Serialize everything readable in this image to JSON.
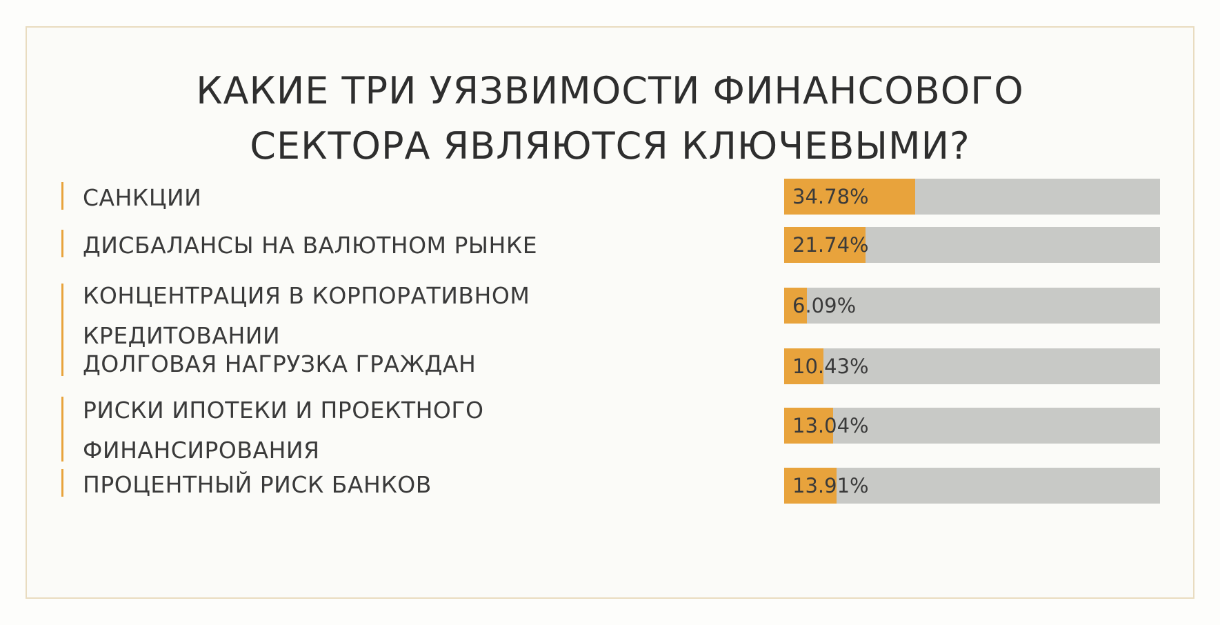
{
  "title_lines": [
    "КАКИЕ ТРИ УЯЗВИМОСТИ ФИНАНСОВОГО",
    "СЕКТОРА ЯВЛЯЮТСЯ КЛЮЧЕВЫМИ?"
  ],
  "colors": {
    "accent": "#e8a33c",
    "track": "#c8c9c6",
    "text": "#3a3a3a",
    "frame": "#e9dcc0"
  },
  "chart_data": {
    "type": "bar",
    "orientation": "horizontal",
    "title": "КАКИЕ ТРИ УЯЗВИМОСТИ ФИНАНСОВОГО СЕКТОРА ЯВЛЯЮТСЯ КЛЮЧЕВЫМИ?",
    "categories": [
      "САНКЦИИ",
      "ДИСБАЛАНСЫ НА ВАЛЮТНОМ РЫНКЕ",
      "КОНЦЕНТРАЦИЯ В КОРПОРАТИВНОМ КРЕДИТОВАНИИ",
      "ДОЛГОВАЯ НАГРУЗКА ГРАЖДАН",
      "РИСКИ ИПОТЕКИ И ПРОЕКТНОГО ФИНАНСИРОВАНИЯ",
      "ПРОЦЕНТНЫЙ РИСК БАНКОВ"
    ],
    "label_lines": [
      [
        "САНКЦИИ"
      ],
      [
        "ДИСБАЛАНСЫ НА ВАЛЮТНОМ РЫНКЕ"
      ],
      [
        "КОНЦЕНТРАЦИЯ В КОРПОРАТИВНОМ",
        "КРЕДИТОВАНИИ"
      ],
      [
        "ДОЛГОВАЯ НАГРУЗКА ГРАЖДАН"
      ],
      [
        "РИСКИ ИПОТЕКИ И ПРОЕКТНОГО",
        "ФИНАНСИРОВАНИЯ"
      ],
      [
        "ПРОЦЕНТНЫЙ РИСК БАНКОВ"
      ]
    ],
    "values": [
      34.78,
      21.74,
      6.09,
      10.43,
      13.04,
      13.91
    ],
    "value_labels": [
      "34.78%",
      "21.74%",
      "6.09%",
      "10.43%",
      "13.04%",
      "13.91%"
    ],
    "xlim": [
      0,
      100
    ],
    "grid": false,
    "legend": "none"
  }
}
